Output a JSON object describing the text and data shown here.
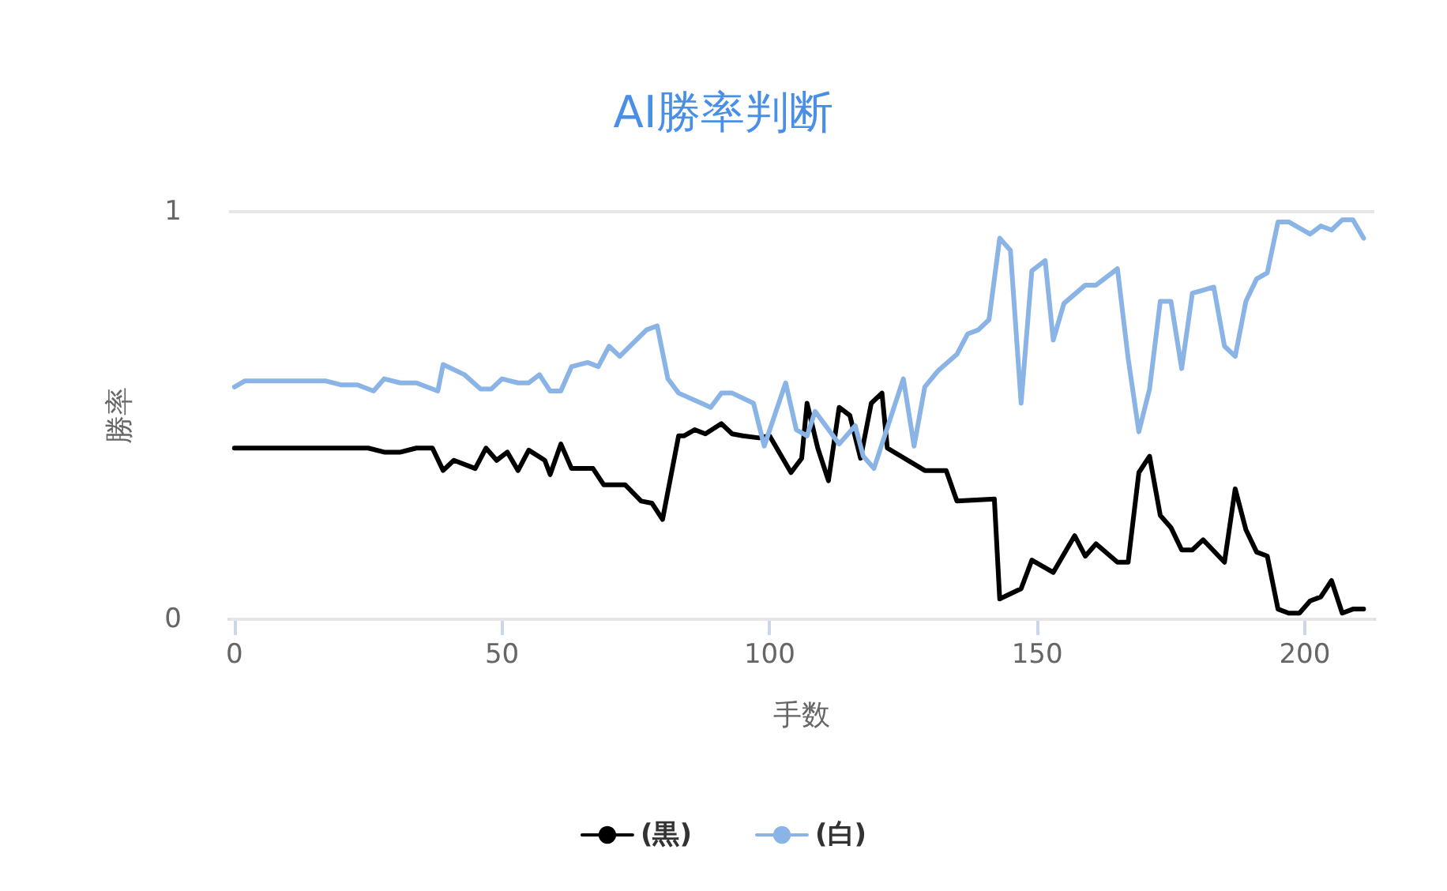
{
  "chart_data": {
    "type": "line",
    "title": "AI勝率判断",
    "xlabel": "手数",
    "ylabel": "勝率",
    "xlim": [
      -1,
      213
    ],
    "xticks": [
      0,
      50,
      100,
      150,
      200
    ],
    "ylim": [
      0,
      1
    ],
    "yticks": [
      0,
      1
    ],
    "grid": "y",
    "legend": "bottom",
    "line_style": "solid",
    "marker": "none",
    "series": [
      {
        "name": "(黒)",
        "color": "#000000",
        "x": [
          0,
          25,
          28,
          31,
          34,
          37,
          39,
          41,
          45,
          47,
          49,
          51,
          53,
          55,
          58,
          59,
          61,
          63,
          67,
          69,
          73,
          76,
          78,
          80,
          83,
          84,
          86,
          88,
          91,
          93,
          95,
          98,
          100,
          104,
          106,
          107,
          109,
          111,
          113,
          115,
          117,
          119,
          121,
          122,
          129,
          133,
          135,
          142,
          143,
          147,
          149,
          153,
          157,
          159,
          161,
          165,
          167,
          169,
          171,
          173,
          175,
          177,
          179,
          181,
          185,
          187,
          189,
          191,
          193,
          195,
          197,
          199,
          201,
          203,
          205,
          207,
          209,
          211
        ],
        "values": [
          0.42,
          0.42,
          0.41,
          0.41,
          0.42,
          0.42,
          0.365,
          0.39,
          0.37,
          0.42,
          0.39,
          0.41,
          0.365,
          0.415,
          0.39,
          0.355,
          0.43,
          0.37,
          0.37,
          0.33,
          0.33,
          0.29,
          0.285,
          0.245,
          0.45,
          0.45,
          0.465,
          0.455,
          0.48,
          0.455,
          0.45,
          0.445,
          0.45,
          0.36,
          0.395,
          0.53,
          0.42,
          0.34,
          0.52,
          0.5,
          0.395,
          0.53,
          0.555,
          0.42,
          0.365,
          0.365,
          0.29,
          0.295,
          0.05,
          0.075,
          0.145,
          0.115,
          0.205,
          0.155,
          0.185,
          0.14,
          0.14,
          0.36,
          0.4,
          0.255,
          0.225,
          0.17,
          0.17,
          0.195,
          0.14,
          0.32,
          0.22,
          0.165,
          0.155,
          0.025,
          0.015,
          0.015,
          0.045,
          0.055,
          0.095,
          0.015,
          0.025,
          0.025
        ]
      },
      {
        "name": "(白)",
        "color": "#8ab4e5",
        "x": [
          0,
          2,
          12,
          17,
          20,
          23,
          26,
          28,
          31,
          34,
          38,
          39,
          43,
          46,
          48,
          50,
          53,
          55,
          57,
          59,
          61,
          63,
          66,
          68,
          70,
          72,
          77,
          79,
          81,
          83,
          89,
          91,
          93,
          97,
          99,
          103,
          105,
          107,
          108.5,
          113,
          116,
          117.5,
          119.5,
          125,
          127,
          129,
          131.5,
          135,
          137,
          139,
          141,
          143,
          145,
          147,
          149,
          151.5,
          153,
          155,
          159,
          161,
          165,
          167,
          169,
          171,
          173,
          175,
          177,
          179,
          183,
          185,
          187,
          189,
          191,
          193,
          195,
          197,
          201,
          203,
          205,
          207,
          209,
          211
        ],
        "values": [
          0.57,
          0.585,
          0.585,
          0.585,
          0.575,
          0.575,
          0.56,
          0.59,
          0.58,
          0.58,
          0.56,
          0.625,
          0.6,
          0.565,
          0.565,
          0.59,
          0.58,
          0.58,
          0.6,
          0.56,
          0.56,
          0.62,
          0.63,
          0.62,
          0.67,
          0.645,
          0.71,
          0.72,
          0.59,
          0.555,
          0.52,
          0.555,
          0.555,
          0.53,
          0.425,
          0.58,
          0.465,
          0.45,
          0.51,
          0.43,
          0.475,
          0.4,
          0.37,
          0.59,
          0.425,
          0.57,
          0.61,
          0.65,
          0.7,
          0.71,
          0.735,
          0.935,
          0.905,
          0.53,
          0.855,
          0.88,
          0.685,
          0.775,
          0.82,
          0.82,
          0.86,
          0.64,
          0.46,
          0.565,
          0.78,
          0.78,
          0.615,
          0.8,
          0.815,
          0.67,
          0.645,
          0.78,
          0.835,
          0.85,
          0.975,
          0.975,
          0.945,
          0.965,
          0.955,
          0.98,
          0.98,
          0.935
        ]
      }
    ]
  }
}
